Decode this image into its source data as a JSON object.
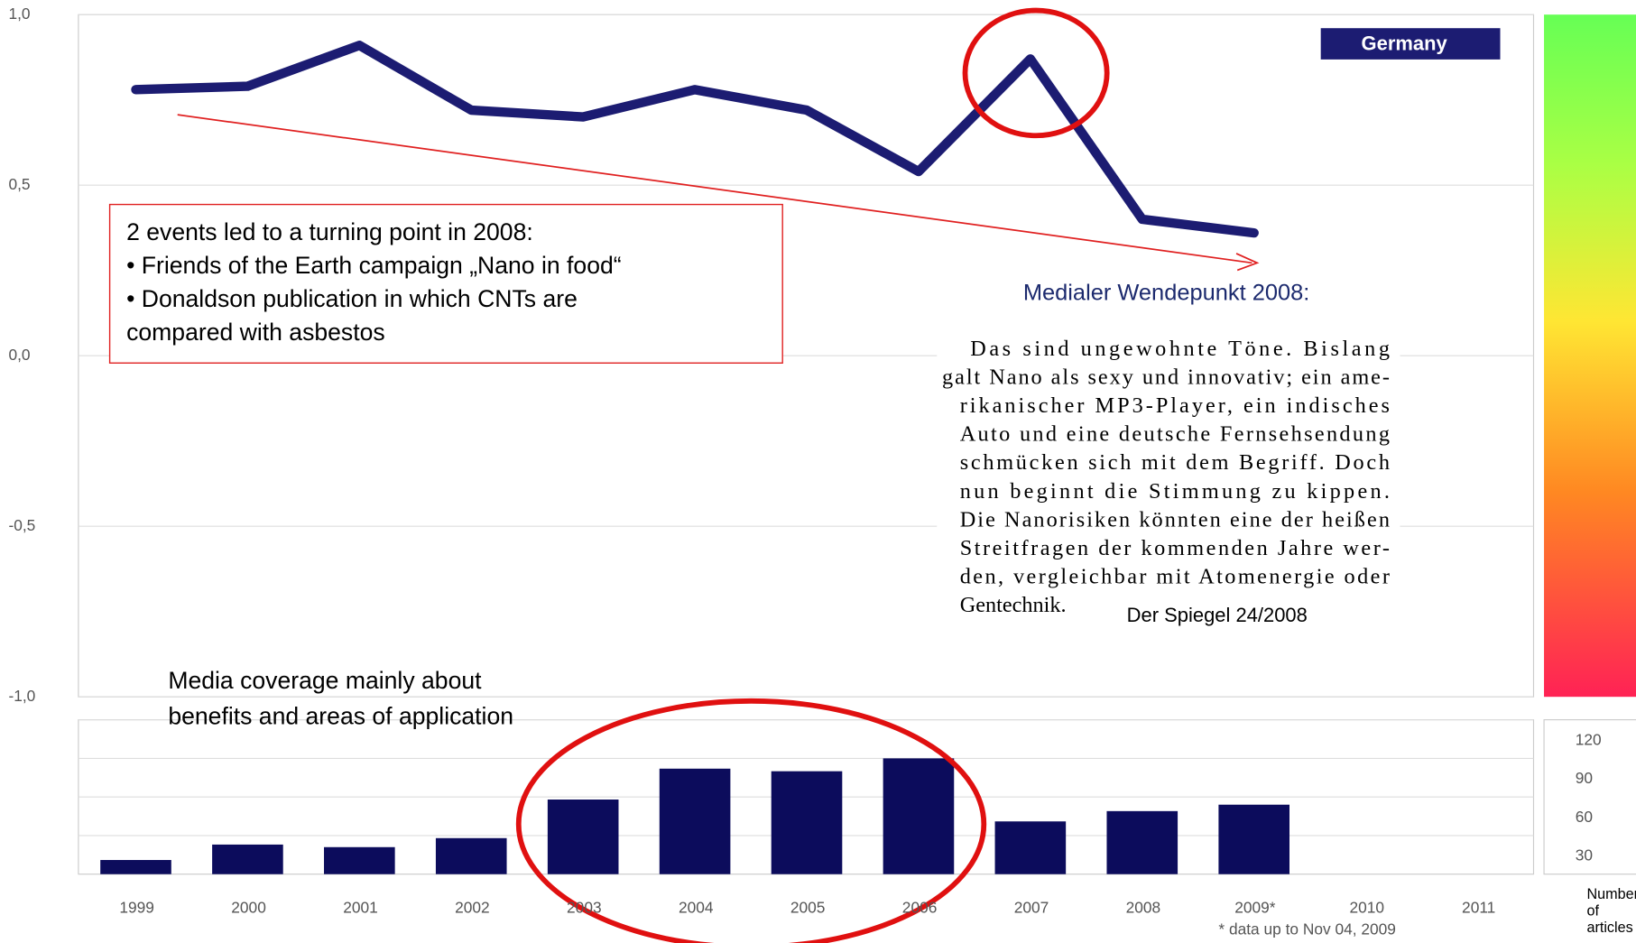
{
  "chart_data": [
    {
      "type": "line",
      "legend": "Germany",
      "series": [
        {
          "name": "Germany",
          "color": "#1c1c72",
          "values": [
            0.78,
            0.79,
            0.91,
            0.72,
            0.7,
            0.78,
            0.72,
            0.54,
            0.87,
            0.4,
            0.36
          ]
        }
      ],
      "ylim": [
        -1,
        1
      ],
      "yticks": [
        {
          "value": 1,
          "label": "1,0"
        },
        {
          "value": 0.5,
          "label": "0,5"
        },
        {
          "value": 0,
          "label": "0,0"
        },
        {
          "value": -0.5,
          "label": "-0,5"
        },
        {
          "value": -1,
          "label": "-1,0"
        }
      ],
      "grid": true,
      "annotation": [
        "2 events led to a turning point in 2008:",
        "• Friends of the Earth campaign  „Nano in food“",
        "• Donaldson publication in which CNTs are",
        "compared with asbestos"
      ],
      "quote_title": "Medialer Wendepunkt 2008:",
      "quote_lines": [
        "Das sind ungewohnte Töne. Bislang",
        "galt Nano als sexy und innovativ; ein ame-",
        "rikanischer MP3-Player, ein indisches",
        "Auto und eine deutsche Fernsehsendung",
        "schmücken sich mit dem Begriff. Doch",
        "nun beginnt die Stimmung zu kippen.",
        "Die Nanorisiken könnten eine der heißen",
        "Streitfragen der kommenden Jahre wer-",
        "den, vergleichbar mit Atomenergie oder",
        "Gentechnik."
      ],
      "quote_source": "Der Spiegel 24/2008",
      "coverage_note": [
        "Media coverage mainly about",
        "benefits and areas of application"
      ]
    },
    {
      "type": "bar",
      "categories": [
        "1999",
        "2000",
        "2001",
        "2002",
        "2003",
        "2004",
        "2005",
        "2006",
        "2007",
        "2008",
        "2009*",
        "2010",
        "2011"
      ],
      "values": [
        11,
        23,
        21,
        28,
        58,
        82,
        80,
        90,
        41,
        49,
        54,
        null,
        null
      ],
      "color": "#0c0c5c",
      "ylim": [
        0,
        120
      ],
      "yticks": [
        30,
        60,
        90,
        120
      ],
      "grid": true,
      "y_label": [
        "Number",
        "of",
        "articles"
      ],
      "footnote": "* data up to Nov 04, 2009"
    }
  ]
}
